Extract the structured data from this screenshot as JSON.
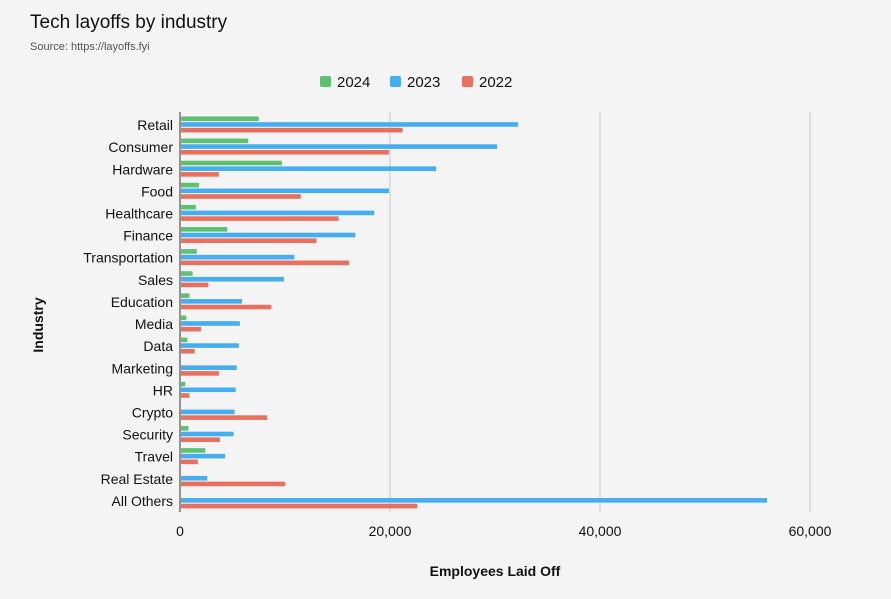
{
  "chart_data": {
    "type": "bar",
    "orientation": "horizontal",
    "title": "Tech layoffs by industry",
    "subtitle": "Source: https://layoffs.fyi",
    "xlabel": "Employees Laid Off",
    "ylabel": "Industry",
    "xlim": [
      0,
      60000
    ],
    "xticks": [
      0,
      20000,
      40000,
      60000
    ],
    "xtick_labels": [
      "0",
      "20,000",
      "40,000",
      "60,000"
    ],
    "grid": "vertical",
    "legend_position": "top-center",
    "categories": [
      "Retail",
      "Consumer",
      "Hardware",
      "Food",
      "Healthcare",
      "Finance",
      "Transportation",
      "Sales",
      "Education",
      "Media",
      "Data",
      "Marketing",
      "HR",
      "Crypto",
      "Security",
      "Travel",
      "Real Estate",
      "All Others"
    ],
    "series": [
      {
        "name": "2024",
        "color": "#5cc170",
        "values": [
          7500,
          6500,
          9700,
          1800,
          1500,
          4500,
          1600,
          1200,
          900,
          600,
          700,
          100,
          500,
          0,
          800,
          2400,
          0,
          0
        ]
      },
      {
        "name": "2023",
        "color": "#45aef0",
        "values": [
          32200,
          30200,
          24400,
          19900,
          18500,
          16700,
          10900,
          9900,
          5900,
          5700,
          5600,
          5400,
          5300,
          5200,
          5100,
          4300,
          2600,
          55900
        ]
      },
      {
        "name": "2022",
        "color": "#e9705f",
        "values": [
          21200,
          19900,
          3700,
          11500,
          15100,
          13000,
          16100,
          2700,
          8700,
          2000,
          1400,
          3700,
          900,
          8300,
          3800,
          1700,
          10000,
          22600
        ]
      }
    ]
  }
}
